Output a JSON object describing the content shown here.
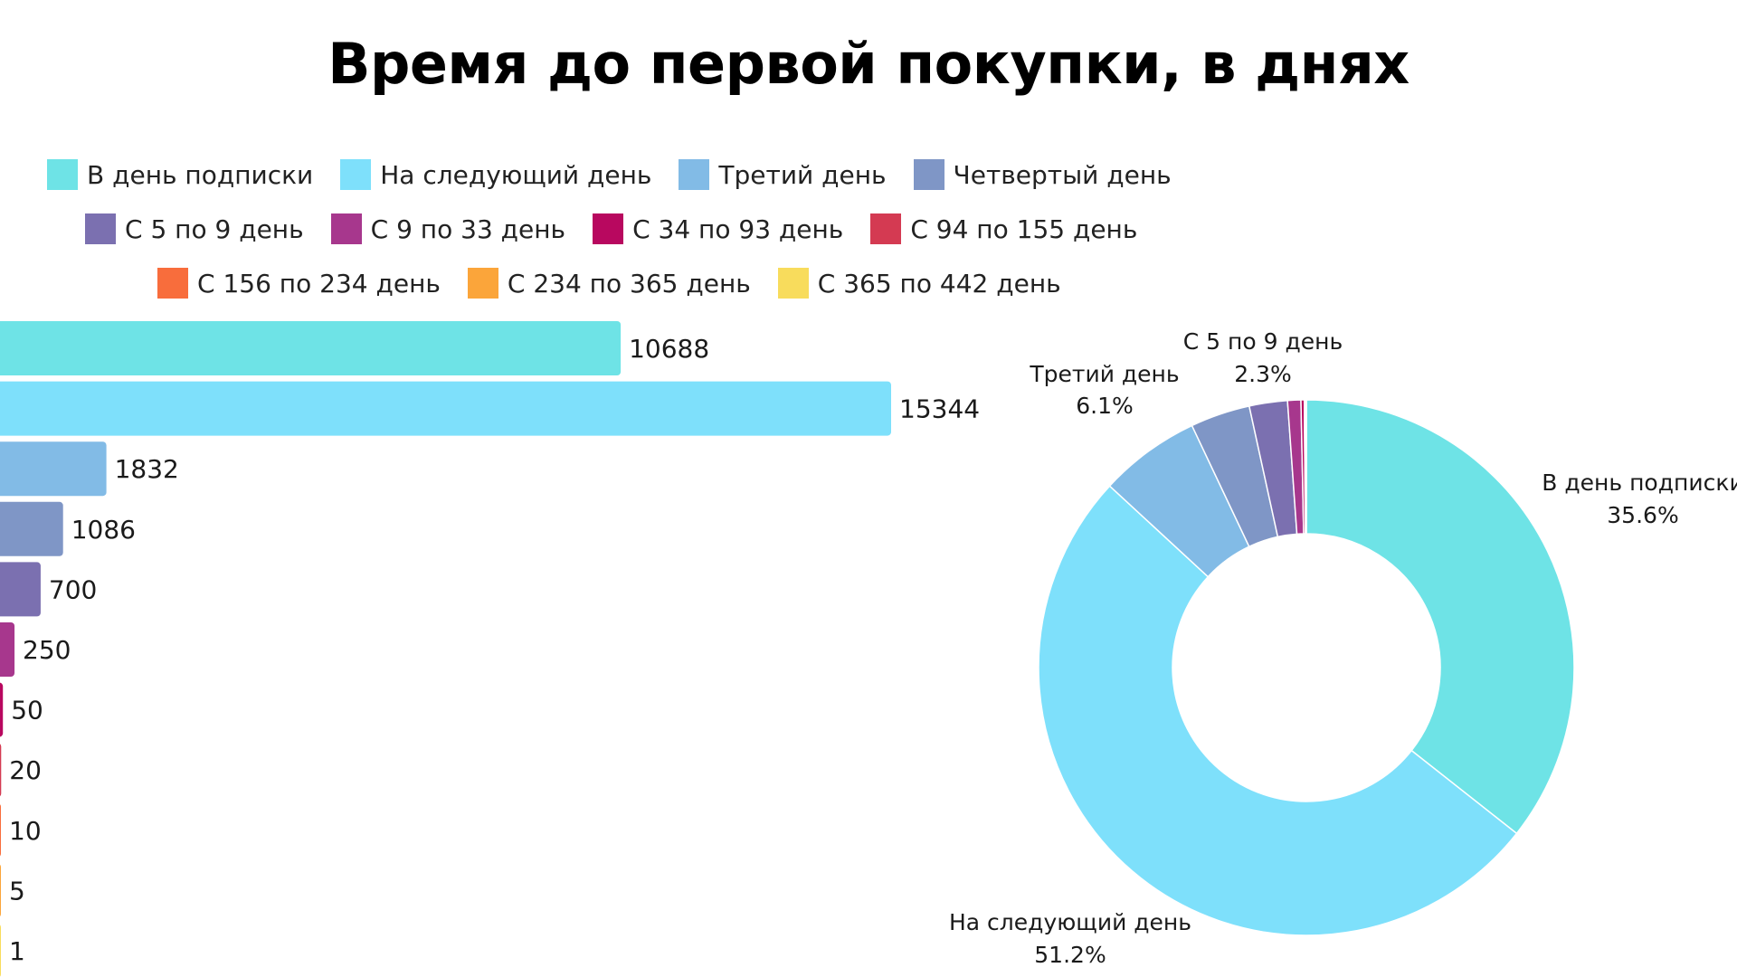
{
  "chart_data": [
    {
      "type": "bar",
      "orientation": "horizontal",
      "title": "Время до первой покупки, в днях",
      "categories": [
        "В день подписки",
        "На следующий день",
        "Третий день",
        "Четвертый день",
        "С 5 по 9 день",
        "С 9 по 33 день",
        "С 34 по 93 день",
        "С 94 по 155 день",
        "С 156 по 234 день",
        "С 234 по 365 день",
        "С 365 по 442 день"
      ],
      "values": [
        10688,
        15344,
        1832,
        1086,
        700,
        250,
        50,
        20,
        10,
        5,
        1
      ],
      "value_labels": [
        "10688",
        "15344",
        "1832",
        "1086",
        "700",
        "250",
        "50",
        "20",
        "10",
        "5",
        "1"
      ],
      "colors": [
        "#6ee3e6",
        "#7ee0fb",
        "#82bbe6",
        "#7f96c6",
        "#7b70b0",
        "#a7378d",
        "#b8085f",
        "#d43a52",
        "#f86d3c",
        "#fba53a",
        "#f8dc5c"
      ],
      "legend": {
        "position": "top",
        "rows": [
          [
            "В день подписки",
            "На следующий день",
            "Третий день",
            "Четвертый день"
          ],
          [
            "С 5 по 9 день",
            "С 9 по 33 день",
            "С 34 по 93 день",
            "С 94 по 155 день"
          ],
          [
            "С 156 по 234 день",
            "С 234 по 365 день",
            "С 365 по 442 день"
          ]
        ]
      }
    },
    {
      "type": "pie",
      "donut": true,
      "slices": [
        {
          "label": "В день подписки",
          "value": 35.6,
          "text": "35.6%"
        },
        {
          "label": "На следующий день",
          "value": 51.2,
          "text": "51.2%"
        },
        {
          "label": "Третий день",
          "value": 6.1,
          "text": "6.1%"
        },
        {
          "label": "Четвертый день",
          "value": 3.6,
          "text": ""
        },
        {
          "label": "С 5 по 9 день",
          "value": 2.3,
          "text": "2.3%"
        },
        {
          "label": "С 9 по 33 день",
          "value": 0.8,
          "text": ""
        },
        {
          "label": "С 34 по 93 день",
          "value": 0.2,
          "text": ""
        },
        {
          "label": "С 94 по 155 день",
          "value": 0.07,
          "text": ""
        },
        {
          "label": "С 156 по 234 день",
          "value": 0.03,
          "text": ""
        },
        {
          "label": "С 234 по 365 день",
          "value": 0.02,
          "text": ""
        },
        {
          "label": "С 365 по 442 день",
          "value": 0.003,
          "text": ""
        }
      ],
      "labeled_slices": [
        "В день подписки",
        "На следующий день",
        "Третий день",
        "С 5 по 9 день"
      ]
    }
  ]
}
